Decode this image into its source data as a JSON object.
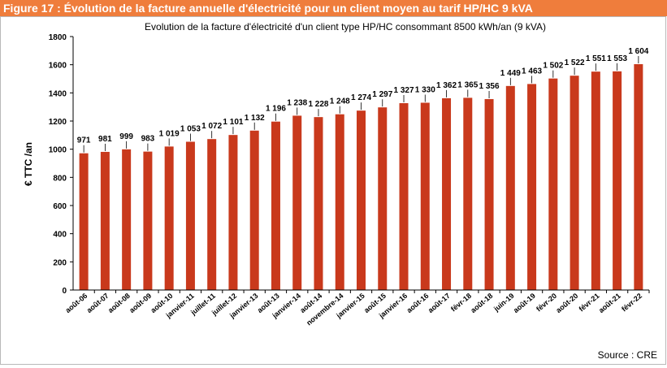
{
  "figure": {
    "heading": "Figure 17 : Évolution de la facture annuelle d'électricité pour un client moyen au tarif HP/HC 9 kVA",
    "source": "Source : CRE"
  },
  "colors": {
    "header_bg": "#ef7d3c",
    "bar": "#c9391c"
  },
  "chart_data": {
    "type": "bar",
    "title": "Evolution de la facture d'électricité d'un client type HP/HC consommant 8500 kWh/an (9 kVA)",
    "xlabel": "",
    "ylabel": "€ TTC /an",
    "ylim": [
      0,
      1800
    ],
    "yticks": [
      0,
      200,
      400,
      600,
      800,
      1000,
      1200,
      1400,
      1600,
      1800
    ],
    "grid": false,
    "legend": "none",
    "categories": [
      "août-06",
      "août-07",
      "août-08",
      "août-09",
      "août-10",
      "janvier-11",
      "juillet-11",
      "juillet-12",
      "janvier-13",
      "août-13",
      "janvier-14",
      "août-14",
      "novembre-14",
      "janvier-15",
      "août-15",
      "janvier-16",
      "août-16",
      "août-17",
      "févr-18",
      "août-18",
      "juin-19",
      "août-19",
      "févr-20",
      "août-20",
      "févr-21",
      "août-21",
      "févr-22"
    ],
    "values": [
      971,
      981,
      999,
      983,
      1019,
      1053,
      1072,
      1101,
      1132,
      1196,
      1238,
      1228,
      1248,
      1274,
      1297,
      1327,
      1330,
      1362,
      1365,
      1356,
      1449,
      1463,
      1502,
      1522,
      1551,
      1553,
      1604
    ],
    "value_labels": [
      "971",
      "981",
      "999",
      "983",
      "1 019",
      "1 053",
      "1 072",
      "1 101",
      "1 132",
      "1 196",
      "1 238",
      "1 228",
      "1 248",
      "1 274",
      "1 297",
      "1 327",
      "1 330",
      "1 362",
      "1 365",
      "1 356",
      "1 449",
      "1 463",
      "1 502",
      "1 522",
      "1 551",
      "1 553",
      "1 604"
    ]
  }
}
